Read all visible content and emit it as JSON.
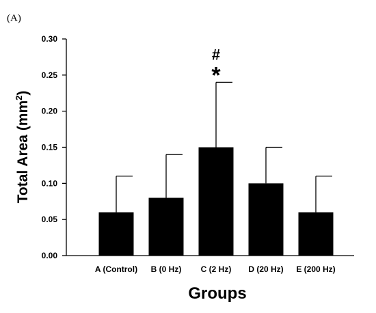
{
  "panel_label": "(A)",
  "chart_data": {
    "type": "bar",
    "categories": [
      "A (Control)",
      "B (0 Hz)",
      "C (2 Hz)",
      "D (20 Hz)",
      "E (200 Hz)"
    ],
    "values": [
      0.06,
      0.08,
      0.15,
      0.1,
      0.06
    ],
    "error_upper": [
      0.11,
      0.14,
      0.24,
      0.15,
      0.11
    ],
    "xlabel": "Groups",
    "ylabel": "Total Area (mm",
    "ylabel_sup": "2",
    "ylabel_close": ")",
    "ylim": [
      0,
      0.3
    ],
    "yticks": [
      "0.00",
      "0.05",
      "0.10",
      "0.15",
      "0.20",
      "0.25",
      "0.30"
    ],
    "annotations": [
      {
        "category": "C (2 Hz)",
        "symbols": [
          "#",
          "*"
        ]
      }
    ],
    "bar_color": "#000000",
    "grid": false,
    "legend": "none"
  }
}
